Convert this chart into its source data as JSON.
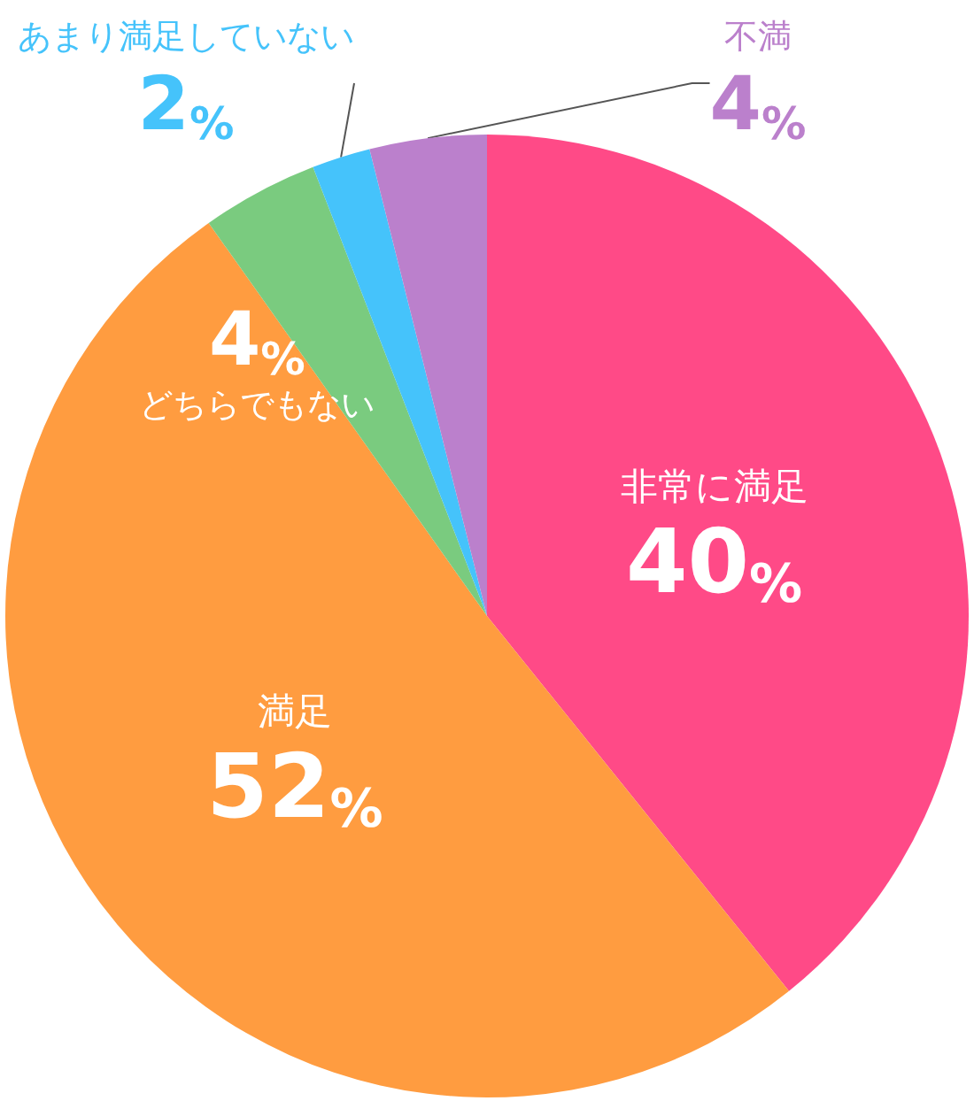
{
  "chart_data": {
    "type": "pie",
    "categories": [
      "非常に満足",
      "満足",
      "どちらでもない",
      "あまり満足していない",
      "不満"
    ],
    "values": [
      40,
      52,
      4,
      2,
      4
    ],
    "colors": [
      "#ff4a87",
      "#ff9c40",
      "#7acb7f",
      "#45c3fb",
      "#bb80cc"
    ],
    "value_labels": [
      "40%",
      "52%",
      "4%",
      "2%",
      "4%"
    ],
    "legend": false
  }
}
